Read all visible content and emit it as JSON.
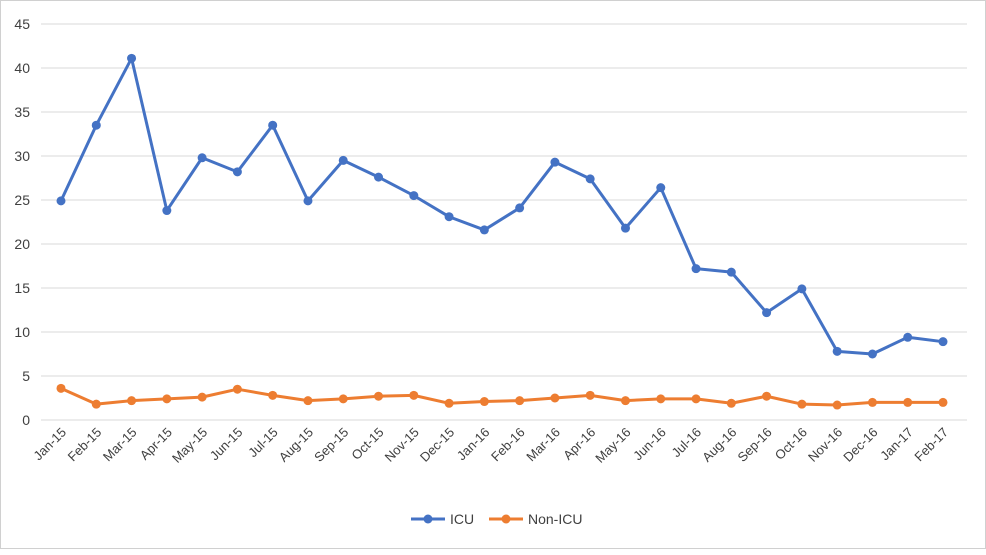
{
  "chart_data": {
    "type": "line",
    "title": "",
    "xlabel": "",
    "ylabel": "",
    "ylim": [
      0,
      45
    ],
    "yticks": [
      0,
      5,
      10,
      15,
      20,
      25,
      30,
      35,
      40,
      45
    ],
    "grid": true,
    "legend_position": "bottom",
    "categories": [
      "Jan-15",
      "Feb-15",
      "Mar-15",
      "Apr-15",
      "May-15",
      "Jun-15",
      "Jul-15",
      "Aug-15",
      "Sep-15",
      "Oct-15",
      "Nov-15",
      "Dec-15",
      "Jan-16",
      "Feb-16",
      "Mar-16",
      "Apr-16",
      "May-16",
      "Jun-16",
      "Jul-16",
      "Aug-16",
      "Sep-16",
      "Oct-16",
      "Nov-16",
      "Dec-16",
      "Jan-17",
      "Feb-17"
    ],
    "series": [
      {
        "name": "ICU",
        "color": "#4472C4",
        "values": [
          24.9,
          33.5,
          41.1,
          23.8,
          29.8,
          28.2,
          33.5,
          24.9,
          29.5,
          27.6,
          25.5,
          23.1,
          21.6,
          24.1,
          29.3,
          27.4,
          21.8,
          26.4,
          17.2,
          16.8,
          12.2,
          14.9,
          7.8,
          7.5,
          9.4,
          8.9
        ]
      },
      {
        "name": "Non-ICU",
        "color": "#ED7D31",
        "values": [
          3.6,
          1.8,
          2.2,
          2.4,
          2.6,
          3.5,
          2.8,
          2.2,
          2.4,
          2.7,
          2.8,
          1.9,
          2.1,
          2.2,
          2.5,
          2.8,
          2.2,
          2.4,
          2.4,
          1.9,
          2.7,
          1.8,
          1.7,
          2.0,
          2.0,
          2.0
        ]
      }
    ]
  }
}
